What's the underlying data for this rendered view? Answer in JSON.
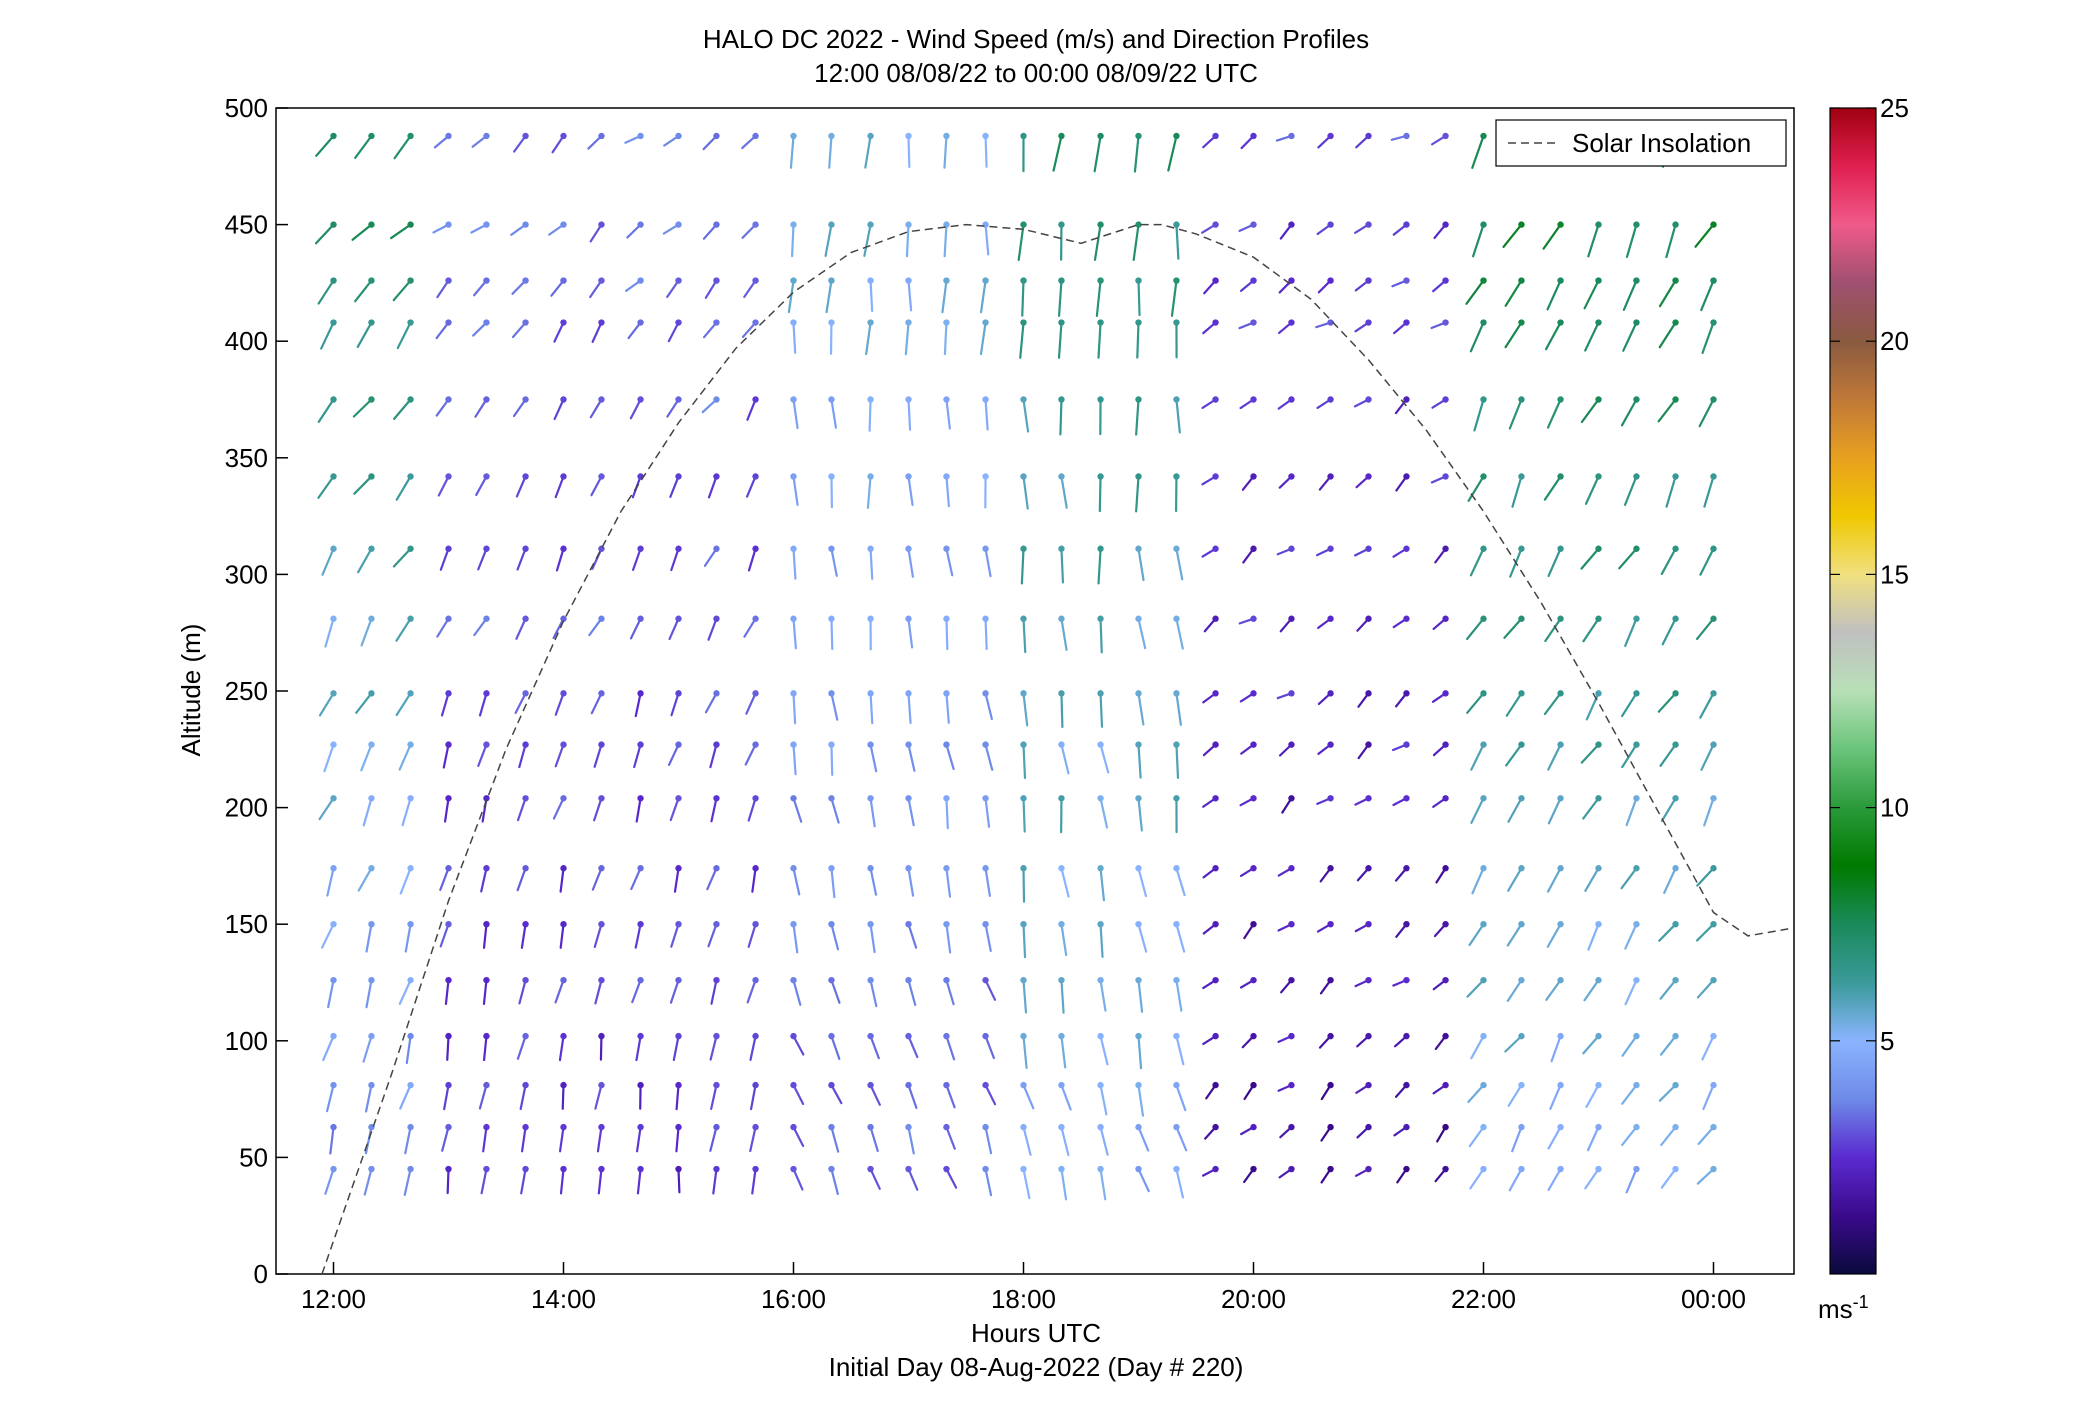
{
  "chart_data": {
    "type": "scatter",
    "title": "HALO DC 2022 - Wind Speed (m/s) and Direction Profiles",
    "subtitle": "12:00 08/08/22 to 00:00 08/09/22  UTC",
    "xlabel": "Hours UTC",
    "xlabel2": "Initial Day 08-Aug-2022 (Day # 220)",
    "ylabel": "Altitude (m)",
    "xlim": [
      11.5,
      24.7
    ],
    "ylim": [
      0,
      500
    ],
    "x_ticks": [
      12,
      14,
      16,
      18,
      20,
      22,
      24
    ],
    "x_tick_labels": [
      "12:00",
      "14:00",
      "16:00",
      "18:00",
      "20:00",
      "22:00",
      "00:00"
    ],
    "y_ticks": [
      0,
      50,
      100,
      150,
      200,
      250,
      300,
      350,
      400,
      450,
      500
    ],
    "y_tick_labels": [
      "0",
      "50",
      "100",
      "150",
      "200",
      "250",
      "300",
      "350",
      "400",
      "450",
      "500"
    ],
    "legend": {
      "entries": [
        "Solar Insolation"
      ],
      "placement": "top-right"
    },
    "colorbar": {
      "min": 0,
      "max": 25,
      "ticks": [
        5,
        10,
        15,
        20,
        25
      ],
      "tick_labels": [
        "5",
        "10",
        "15",
        "20",
        "25"
      ],
      "unit_base": "ms",
      "unit_exp": "-1"
    },
    "colormap": [
      "#0a0a3c",
      "#3a0a8c",
      "#5a2ad0",
      "#6e8ae8",
      "#8ab4ff",
      "#3a9a9a",
      "#1a8a5a",
      "#007a00",
      "#2a9a3a",
      "#6ac47a",
      "#b8e0b8",
      "#c0c0c0",
      "#f0e080",
      "#f0c800",
      "#e8a020",
      "#c07838",
      "#8a5a40",
      "#a05070",
      "#f05a8a",
      "#e02050",
      "#a00010"
    ],
    "series": [
      {
        "name": "Solar Insolation",
        "x": [
          11.9,
          12.5,
          13,
          13.5,
          14,
          14.5,
          15,
          15.5,
          16,
          16.5,
          17,
          17.5,
          18,
          18.5,
          19,
          19.2,
          19.5,
          20,
          20.5,
          21,
          21.5,
          22,
          22.5,
          23,
          23.5,
          24,
          24.3,
          24.65
        ],
        "y": [
          0,
          85,
          160,
          225,
          280,
          327,
          365,
          397,
          421,
          438,
          447,
          450,
          448,
          442,
          450,
          450,
          446,
          436,
          418,
          392,
          362,
          327,
          288,
          245,
          200,
          155,
          145,
          148
        ]
      }
    ],
    "times": [
      12.0,
      12.33,
      12.67,
      13.0,
      13.33,
      13.67,
      14.0,
      14.33,
      14.67,
      15.0,
      15.33,
      15.67,
      16.0,
      16.33,
      16.67,
      17.0,
      17.33,
      17.67,
      18.0,
      18.33,
      18.67,
      19.0,
      19.33,
      19.67,
      20.0,
      20.33,
      20.67,
      21.0,
      21.33,
      21.67,
      22.0,
      22.33,
      22.67,
      23.0,
      23.33,
      23.67,
      24.0
    ],
    "altitudes": [
      45,
      63,
      81,
      102,
      126,
      150,
      174,
      204,
      227,
      249,
      281,
      311,
      342,
      375,
      408,
      426,
      450,
      488
    ],
    "wind_regimes": [
      {
        "t0": 12.0,
        "t1": 13.0,
        "a0": 0,
        "a1": 500,
        "dir_low": 200,
        "dir_high": 240,
        "speed_low": 3.5,
        "speed_high": 7.5
      },
      {
        "t0": 13.0,
        "t1": 16.0,
        "a0": 0,
        "a1": 500,
        "dir_low": 185,
        "dir_high": 245,
        "speed_low": 2.5,
        "speed_high": 3.5
      },
      {
        "t0": 16.0,
        "t1": 18.0,
        "a0": 0,
        "a1": 500,
        "dir_low": 140,
        "dir_high": 190,
        "speed_low": 3.0,
        "speed_high": 5.5
      },
      {
        "t0": 18.0,
        "t1": 19.67,
        "a0": 0,
        "a1": 500,
        "dir_low": 150,
        "dir_high": 190,
        "speed_low": 4.5,
        "speed_high": 7.0
      },
      {
        "t0": 19.67,
        "t1": 22.0,
        "a0": 0,
        "a1": 500,
        "dir_low": 240,
        "dir_high": 250,
        "speed_low": 1.5,
        "speed_high": 3.0
      },
      {
        "t0": 22.0,
        "t1": 24.0,
        "a0": 0,
        "a1": 500,
        "dir_low": 230,
        "dir_high": 220,
        "speed_low": 4.5,
        "speed_high": 8.0
      }
    ]
  }
}
